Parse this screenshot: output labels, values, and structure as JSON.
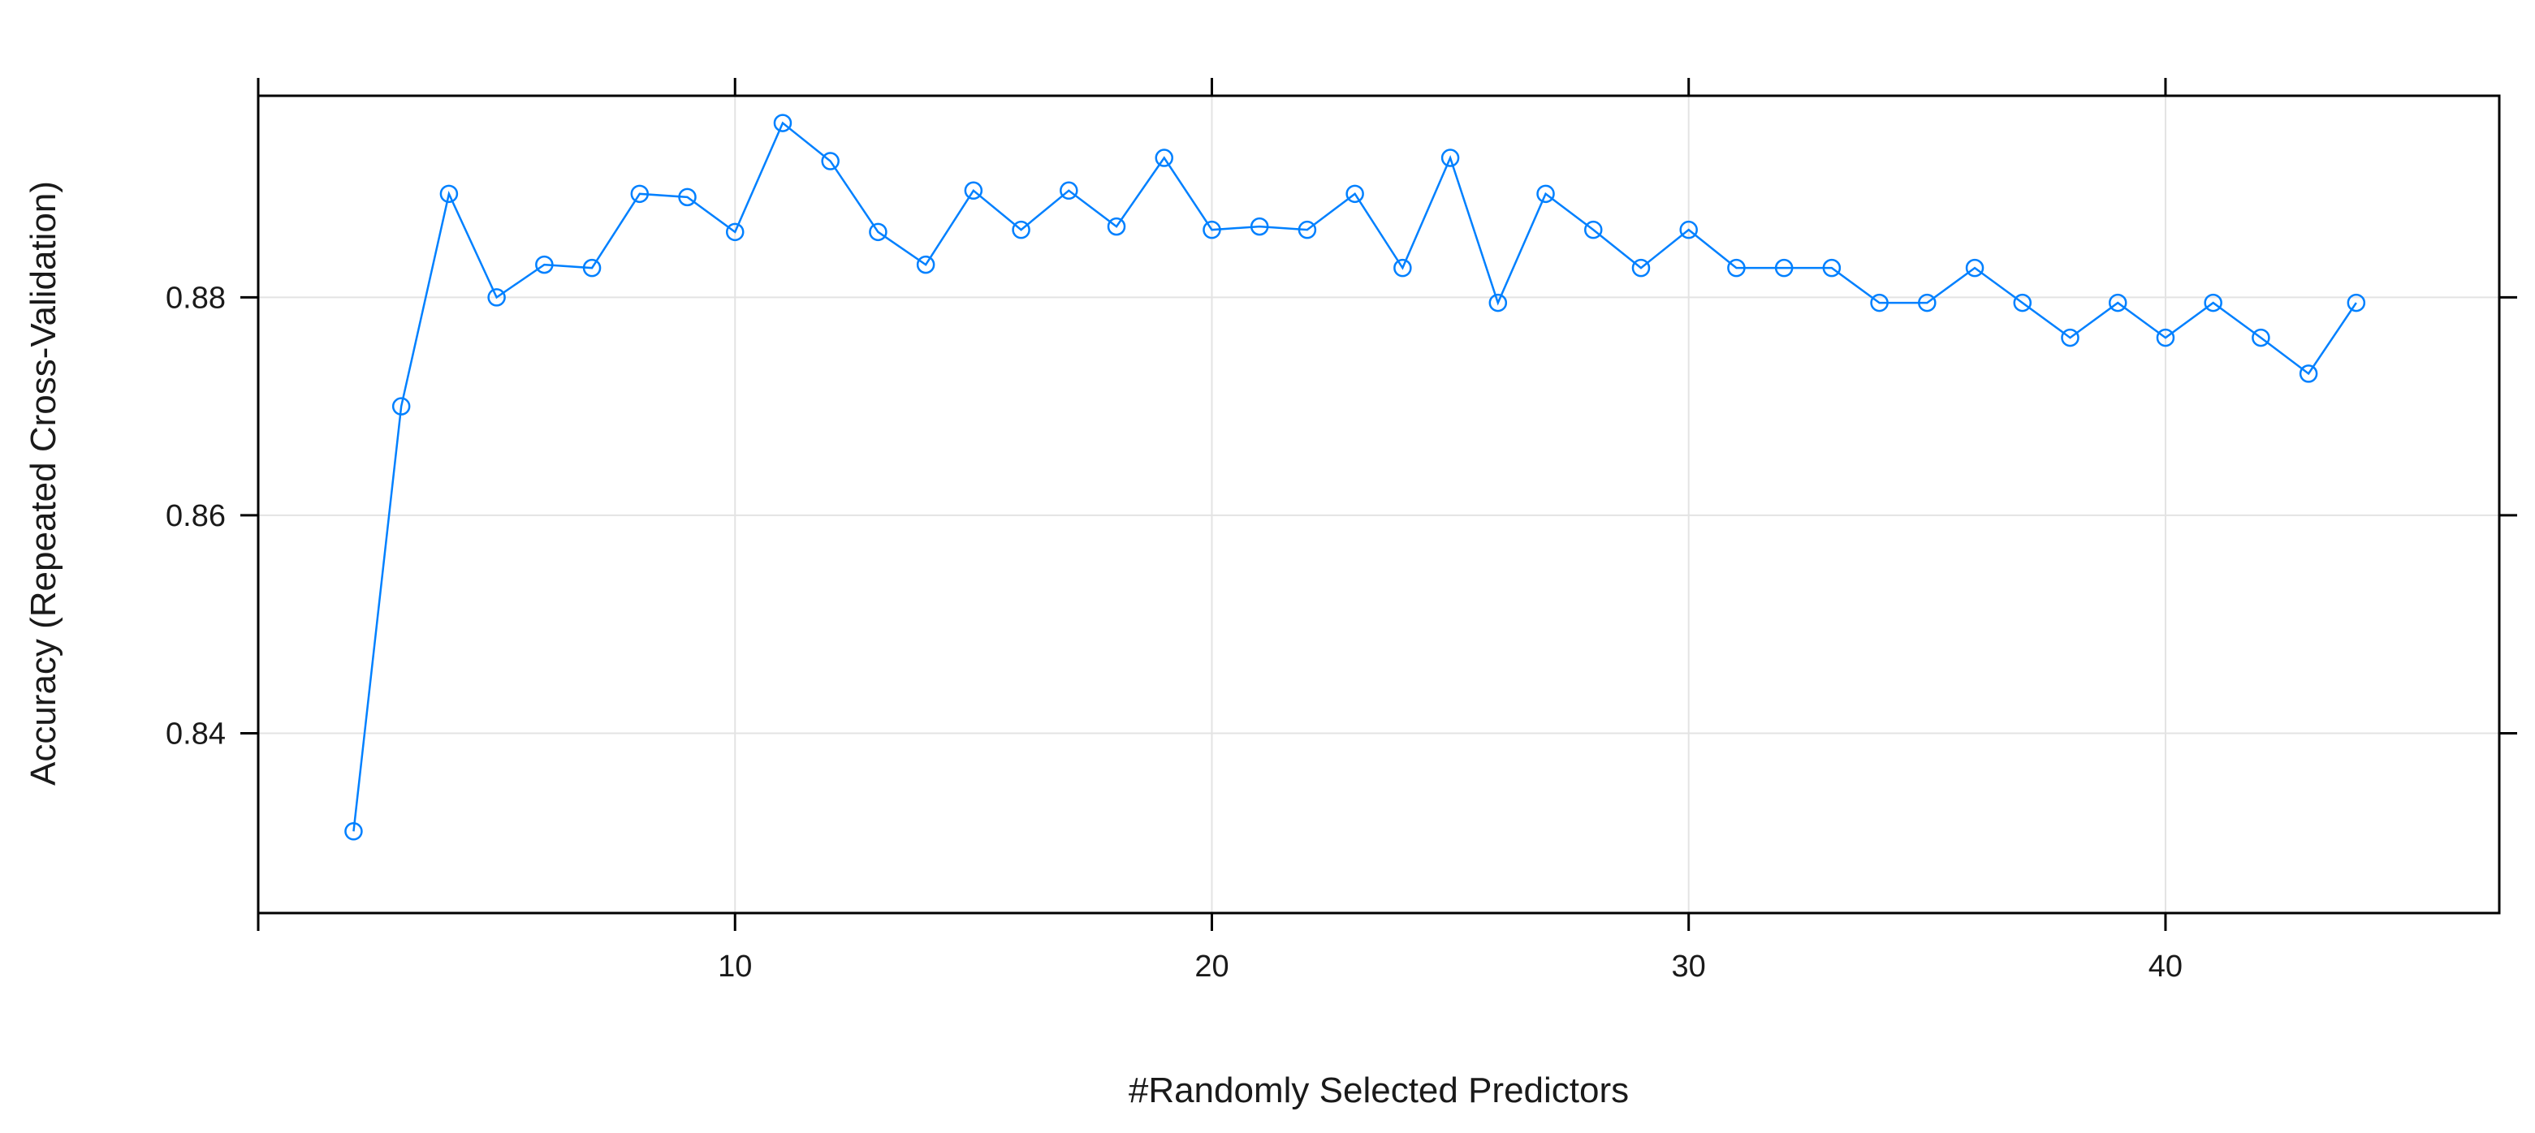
{
  "chart_data": {
    "type": "line",
    "xlabel": "#Randomly Selected Predictors",
    "ylabel": "Accuracy (Repeated Cross-Validation)",
    "xlim": [
      0,
      47
    ],
    "ylim": [
      0.8235,
      0.8985
    ],
    "x_ticks": [
      10,
      20,
      30,
      40
    ],
    "y_ticks": [
      0.84,
      0.86,
      0.88
    ],
    "x_tick_labels": [
      "10",
      "20",
      "30",
      "40"
    ],
    "y_tick_labels": [
      "0.84",
      "0.86",
      "0.88"
    ],
    "grid": true,
    "marker": "open-circle",
    "series_color": "#0080ff",
    "series": [
      {
        "x": [
          2,
          3,
          4,
          5,
          6,
          7,
          8,
          9,
          10,
          11,
          12,
          13,
          14,
          15,
          16,
          17,
          18,
          19,
          20,
          21,
          22,
          23,
          24,
          25,
          26,
          27,
          28,
          29,
          30,
          31,
          32,
          33,
          34,
          35,
          36,
          37,
          38,
          39,
          40,
          41,
          42,
          43,
          44
        ],
        "values": [
          0.831,
          0.87,
          0.8895,
          0.88,
          0.883,
          0.8827,
          0.8895,
          0.8892,
          0.886,
          0.896,
          0.8925,
          0.886,
          0.883,
          0.8898,
          0.8862,
          0.8898,
          0.8865,
          0.8928,
          0.8862,
          0.8865,
          0.8862,
          0.8895,
          0.8827,
          0.8928,
          0.8795,
          0.8895,
          0.8862,
          0.8827,
          0.8862,
          0.8827,
          0.8827,
          0.8827,
          0.8795,
          0.8795,
          0.8827,
          0.8795,
          0.8763,
          0.8795,
          0.8763,
          0.8795,
          0.8763,
          0.873,
          0.8795
        ]
      }
    ]
  }
}
